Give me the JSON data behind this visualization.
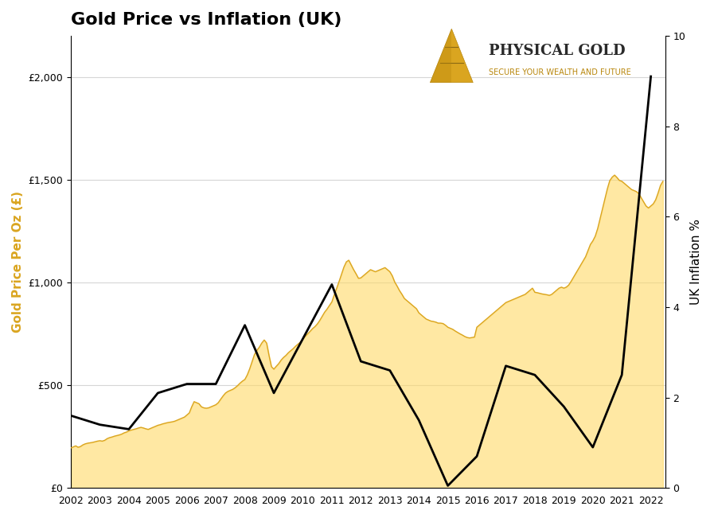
{
  "title": "Gold Price vs Inflation (UK)",
  "ylabel_left": "Gold Price Per Oz (£)",
  "ylabel_right": "UK Inflation %",
  "background_color": "#ffffff",
  "gold_monthly_x": [
    2002.0,
    2002.083,
    2002.167,
    2002.25,
    2002.333,
    2002.417,
    2002.5,
    2002.583,
    2002.667,
    2002.75,
    2002.833,
    2002.917,
    2003.0,
    2003.083,
    2003.167,
    2003.25,
    2003.333,
    2003.417,
    2003.5,
    2003.583,
    2003.667,
    2003.75,
    2003.833,
    2003.917,
    2004.0,
    2004.083,
    2004.167,
    2004.25,
    2004.333,
    2004.417,
    2004.5,
    2004.583,
    2004.667,
    2004.75,
    2004.833,
    2004.917,
    2005.0,
    2005.083,
    2005.167,
    2005.25,
    2005.333,
    2005.417,
    2005.5,
    2005.583,
    2005.667,
    2005.75,
    2005.833,
    2005.917,
    2006.0,
    2006.083,
    2006.167,
    2006.25,
    2006.333,
    2006.417,
    2006.5,
    2006.583,
    2006.667,
    2006.75,
    2006.833,
    2006.917,
    2007.0,
    2007.083,
    2007.167,
    2007.25,
    2007.333,
    2007.417,
    2007.5,
    2007.583,
    2007.667,
    2007.75,
    2007.833,
    2007.917,
    2008.0,
    2008.083,
    2008.167,
    2008.25,
    2008.333,
    2008.417,
    2008.5,
    2008.583,
    2008.667,
    2008.75,
    2008.833,
    2008.917,
    2009.0,
    2009.083,
    2009.167,
    2009.25,
    2009.333,
    2009.417,
    2009.5,
    2009.583,
    2009.667,
    2009.75,
    2009.833,
    2009.917,
    2010.0,
    2010.083,
    2010.167,
    2010.25,
    2010.333,
    2010.417,
    2010.5,
    2010.583,
    2010.667,
    2010.75,
    2010.833,
    2010.917,
    2011.0,
    2011.083,
    2011.167,
    2011.25,
    2011.333,
    2011.417,
    2011.5,
    2011.583,
    2011.667,
    2011.75,
    2011.833,
    2011.917,
    2012.0,
    2012.083,
    2012.167,
    2012.25,
    2012.333,
    2012.417,
    2012.5,
    2012.583,
    2012.667,
    2012.75,
    2012.833,
    2012.917,
    2013.0,
    2013.083,
    2013.167,
    2013.25,
    2013.333,
    2013.417,
    2013.5,
    2013.583,
    2013.667,
    2013.75,
    2013.833,
    2013.917,
    2014.0,
    2014.083,
    2014.167,
    2014.25,
    2014.333,
    2014.417,
    2014.5,
    2014.583,
    2014.667,
    2014.75,
    2014.833,
    2014.917,
    2015.0,
    2015.083,
    2015.167,
    2015.25,
    2015.333,
    2015.417,
    2015.5,
    2015.583,
    2015.667,
    2015.75,
    2015.833,
    2015.917,
    2016.0,
    2016.083,
    2016.167,
    2016.25,
    2016.333,
    2016.417,
    2016.5,
    2016.583,
    2016.667,
    2016.75,
    2016.833,
    2016.917,
    2017.0,
    2017.083,
    2017.167,
    2017.25,
    2017.333,
    2017.417,
    2017.5,
    2017.583,
    2017.667,
    2017.75,
    2017.833,
    2017.917,
    2018.0,
    2018.083,
    2018.167,
    2018.25,
    2018.333,
    2018.417,
    2018.5,
    2018.583,
    2018.667,
    2018.75,
    2018.833,
    2018.917,
    2019.0,
    2019.083,
    2019.167,
    2019.25,
    2019.333,
    2019.417,
    2019.5,
    2019.583,
    2019.667,
    2019.75,
    2019.833,
    2019.917,
    2020.0,
    2020.083,
    2020.167,
    2020.25,
    2020.333,
    2020.417,
    2020.5,
    2020.583,
    2020.667,
    2020.75,
    2020.833,
    2020.917,
    2021.0,
    2021.083,
    2021.167,
    2021.25,
    2021.333,
    2021.417,
    2021.5,
    2021.583,
    2021.667,
    2021.75,
    2021.833,
    2021.917,
    2022.0,
    2022.083,
    2022.167,
    2022.25,
    2022.333,
    2022.417
  ],
  "gold_monthly_y": [
    195,
    200,
    205,
    198,
    202,
    210,
    215,
    218,
    220,
    222,
    225,
    228,
    230,
    228,
    232,
    240,
    245,
    248,
    252,
    255,
    258,
    262,
    268,
    272,
    278,
    282,
    285,
    288,
    292,
    295,
    292,
    288,
    285,
    290,
    295,
    300,
    305,
    308,
    312,
    315,
    318,
    320,
    322,
    325,
    330,
    335,
    340,
    345,
    355,
    365,
    395,
    420,
    415,
    410,
    395,
    390,
    388,
    390,
    395,
    400,
    405,
    415,
    432,
    448,
    462,
    470,
    475,
    480,
    488,
    498,
    510,
    520,
    528,
    550,
    580,
    615,
    650,
    670,
    685,
    705,
    720,
    705,
    645,
    590,
    578,
    592,
    605,
    622,
    635,
    645,
    658,
    668,
    678,
    690,
    700,
    710,
    725,
    738,
    750,
    762,
    775,
    785,
    798,
    815,
    835,
    855,
    870,
    888,
    905,
    940,
    972,
    1005,
    1040,
    1075,
    1100,
    1108,
    1085,
    1062,
    1042,
    1020,
    1022,
    1032,
    1042,
    1052,
    1062,
    1057,
    1052,
    1057,
    1062,
    1067,
    1072,
    1062,
    1052,
    1032,
    1002,
    982,
    960,
    942,
    922,
    912,
    902,
    892,
    882,
    872,
    852,
    842,
    832,
    822,
    817,
    812,
    810,
    807,
    802,
    802,
    800,
    792,
    782,
    777,
    772,
    764,
    757,
    750,
    744,
    737,
    732,
    730,
    732,
    734,
    782,
    792,
    802,
    812,
    822,
    832,
    842,
    852,
    862,
    872,
    882,
    892,
    902,
    907,
    912,
    917,
    922,
    927,
    932,
    937,
    942,
    952,
    962,
    972,
    952,
    950,
    947,
    944,
    942,
    940,
    937,
    942,
    952,
    962,
    972,
    977,
    972,
    977,
    987,
    1005,
    1025,
    1045,
    1065,
    1085,
    1105,
    1125,
    1155,
    1185,
    1202,
    1225,
    1262,
    1310,
    1358,
    1408,
    1455,
    1495,
    1512,
    1522,
    1510,
    1496,
    1492,
    1482,
    1472,
    1462,
    1452,
    1447,
    1442,
    1432,
    1412,
    1392,
    1372,
    1362,
    1372,
    1382,
    1402,
    1435,
    1472,
    1492
  ],
  "inflation_x": [
    2002,
    2003,
    2004,
    2005,
    2006,
    2007,
    2008,
    2009,
    2010,
    2011,
    2012,
    2013,
    2014,
    2015,
    2016,
    2017,
    2018,
    2019,
    2020,
    2021,
    2022
  ],
  "inflation_y": [
    1.6,
    1.4,
    1.3,
    2.1,
    2.3,
    2.3,
    3.6,
    2.1,
    3.3,
    4.5,
    2.8,
    2.6,
    1.5,
    0.05,
    0.7,
    2.7,
    2.5,
    1.8,
    0.9,
    2.5,
    9.1
  ],
  "gold_fill_color": "#FFD966",
  "gold_fill_alpha": 0.6,
  "gold_line_color": "#DAA520",
  "inflation_line_color": "#000000",
  "left_ylim": [
    0,
    2200
  ],
  "right_ylim": [
    0,
    10
  ],
  "left_yticks": [
    0,
    500,
    1000,
    1500,
    2000
  ],
  "left_yticklabels": [
    "£0",
    "£500",
    "£1,000",
    "£1,500",
    "£2,000"
  ],
  "right_yticks": [
    0,
    2,
    4,
    6,
    8,
    10
  ],
  "xticks": [
    2002,
    2003,
    2004,
    2005,
    2006,
    2007,
    2008,
    2009,
    2010,
    2011,
    2012,
    2013,
    2014,
    2015,
    2016,
    2017,
    2018,
    2019,
    2020,
    2021,
    2022
  ],
  "grid_color": "#bbbbbb",
  "grid_alpha": 0.6,
  "title_fontsize": 16,
  "label_fontsize": 11,
  "tick_fontsize": 9,
  "ylabel_left_color": "#DAA520",
  "watermark_text": "PHYSICAL GOLD",
  "watermark_subtitle": "SECURE YOUR WEALTH AND FUTURE"
}
